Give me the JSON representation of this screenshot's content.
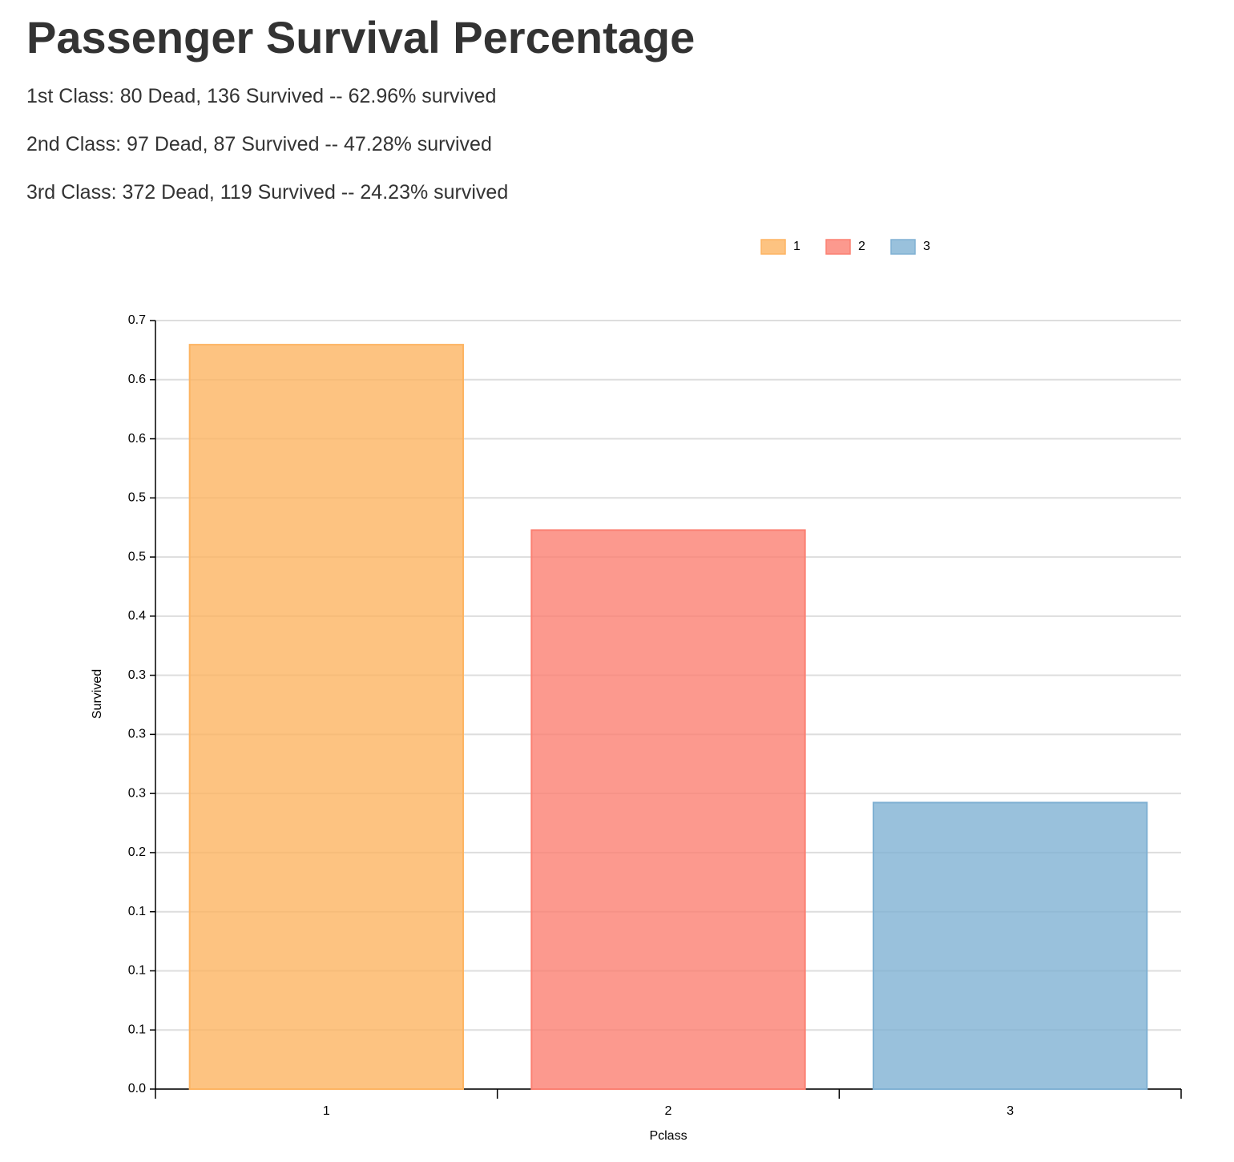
{
  "chart_data": {
    "type": "bar",
    "title": "Passenger Survival Percentage",
    "subtitles": [
      "1st Class: 80 Dead, 136 Survived -- 62.96% survived",
      "2nd Class: 97 Dead, 87 Survived -- 47.28% survived",
      "3rd Class: 372 Dead, 119 Survived -- 24.23% survived"
    ],
    "x_label": "Pclass",
    "y_label": "Survived",
    "categories": [
      "1",
      "2",
      "3"
    ],
    "values": [
      0.6296,
      0.4728,
      0.2423
    ],
    "colors": [
      "#fdb462",
      "#fb8072",
      "#80b1d3"
    ],
    "ylim": [
      0,
      0.65
    ],
    "yticks": [
      {
        "value": 0,
        "label": "0.0"
      },
      {
        "value": 0.05,
        "label": "0.1"
      },
      {
        "value": 0.1,
        "label": "0.1"
      },
      {
        "value": 0.15,
        "label": "0.1"
      },
      {
        "value": 0.2,
        "label": "0.2"
      },
      {
        "value": 0.25,
        "label": "0.3"
      },
      {
        "value": 0.3,
        "label": "0.3"
      },
      {
        "value": 0.35,
        "label": "0.3"
      },
      {
        "value": 0.4,
        "label": "0.4"
      },
      {
        "value": 0.45,
        "label": "0.5"
      },
      {
        "value": 0.5,
        "label": "0.5"
      },
      {
        "value": 0.55,
        "label": "0.6"
      },
      {
        "value": 0.6,
        "label": "0.6"
      },
      {
        "value": 0.65,
        "label": "0.7"
      }
    ],
    "grid": true
  }
}
